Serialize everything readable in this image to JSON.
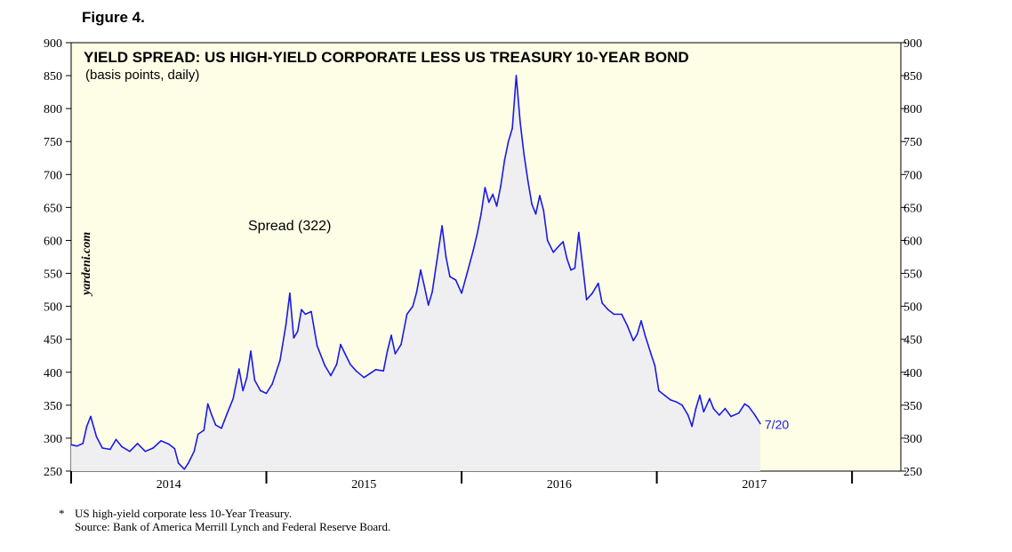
{
  "figure_label": "Figure 4.",
  "footnote": {
    "marker": "*",
    "line1": "US high-yield corporate less 10-Year Treasury.",
    "line2": "Source: Bank of America Merrill Lynch and Federal Reserve Board."
  },
  "colors": {
    "plot_bg": "#fefde6",
    "line": "#1a1ae6",
    "fill": "#efeff1",
    "axis": "#000000"
  },
  "chart_data": {
    "type": "area",
    "title": "YIELD SPREAD: US HIGH-YIELD CORPORATE LESS US TREASURY 10-YEAR BOND",
    "subtitle": "(basis points, daily)",
    "watermark": "yardeni.com",
    "series_label": "Spread (322)",
    "end_label": "7/20",
    "ylim": [
      250,
      900
    ],
    "yticks": [
      250,
      300,
      350,
      400,
      450,
      500,
      550,
      600,
      650,
      700,
      750,
      800,
      850,
      900
    ],
    "xlim": [
      2013.5,
      2017.75
    ],
    "xticks_major": [
      2013.5,
      2014.5,
      2015.5,
      2016.5,
      2017.5
    ],
    "xtick_labels": [
      {
        "label": "2014",
        "x": 2014.0
      },
      {
        "label": "2015",
        "x": 2015.0
      },
      {
        "label": "2016",
        "x": 2016.0
      },
      {
        "label": "2017",
        "x": 2017.0
      }
    ],
    "series": [
      {
        "name": "Spread",
        "points": [
          [
            2013.5,
            290
          ],
          [
            2013.53,
            288
          ],
          [
            2013.56,
            292
          ],
          [
            2013.58,
            318
          ],
          [
            2013.6,
            333
          ],
          [
            2013.63,
            302
          ],
          [
            2013.66,
            285
          ],
          [
            2013.7,
            283
          ],
          [
            2013.73,
            298
          ],
          [
            2013.76,
            287
          ],
          [
            2013.8,
            280
          ],
          [
            2013.84,
            292
          ],
          [
            2013.88,
            280
          ],
          [
            2013.92,
            285
          ],
          [
            2013.96,
            296
          ],
          [
            2014.0,
            291
          ],
          [
            2014.03,
            284
          ],
          [
            2014.05,
            262
          ],
          [
            2014.08,
            253
          ],
          [
            2014.1,
            262
          ],
          [
            2014.13,
            280
          ],
          [
            2014.15,
            306
          ],
          [
            2014.18,
            312
          ],
          [
            2014.2,
            352
          ],
          [
            2014.22,
            335
          ],
          [
            2014.24,
            320
          ],
          [
            2014.27,
            315
          ],
          [
            2014.3,
            338
          ],
          [
            2014.33,
            360
          ],
          [
            2014.36,
            405
          ],
          [
            2014.38,
            372
          ],
          [
            2014.4,
            392
          ],
          [
            2014.42,
            432
          ],
          [
            2014.44,
            388
          ],
          [
            2014.47,
            372
          ],
          [
            2014.5,
            368
          ],
          [
            2014.53,
            382
          ],
          [
            2014.57,
            418
          ],
          [
            2014.6,
            472
          ],
          [
            2014.62,
            520
          ],
          [
            2014.64,
            452
          ],
          [
            2014.66,
            462
          ],
          [
            2014.68,
            495
          ],
          [
            2014.7,
            488
          ],
          [
            2014.73,
            492
          ],
          [
            2014.76,
            440
          ],
          [
            2014.8,
            410
          ],
          [
            2014.83,
            395
          ],
          [
            2014.86,
            412
          ],
          [
            2014.88,
            442
          ],
          [
            2014.9,
            430
          ],
          [
            2014.93,
            412
          ],
          [
            2014.96,
            402
          ],
          [
            2015.0,
            392
          ],
          [
            2015.03,
            398
          ],
          [
            2015.06,
            404
          ],
          [
            2015.1,
            402
          ],
          [
            2015.12,
            432
          ],
          [
            2015.14,
            456
          ],
          [
            2015.16,
            428
          ],
          [
            2015.19,
            442
          ],
          [
            2015.22,
            488
          ],
          [
            2015.25,
            500
          ],
          [
            2015.27,
            522
          ],
          [
            2015.29,
            555
          ],
          [
            2015.31,
            530
          ],
          [
            2015.33,
            502
          ],
          [
            2015.35,
            522
          ],
          [
            2015.38,
            582
          ],
          [
            2015.4,
            622
          ],
          [
            2015.42,
            575
          ],
          [
            2015.44,
            545
          ],
          [
            2015.47,
            540
          ],
          [
            2015.5,
            520
          ],
          [
            2015.53,
            552
          ],
          [
            2015.56,
            585
          ],
          [
            2015.58,
            610
          ],
          [
            2015.6,
            640
          ],
          [
            2015.62,
            680
          ],
          [
            2015.64,
            658
          ],
          [
            2015.66,
            670
          ],
          [
            2015.68,
            652
          ],
          [
            2015.7,
            682
          ],
          [
            2015.72,
            722
          ],
          [
            2015.74,
            750
          ],
          [
            2015.76,
            770
          ],
          [
            2015.78,
            850
          ],
          [
            2015.8,
            780
          ],
          [
            2015.82,
            730
          ],
          [
            2015.84,
            690
          ],
          [
            2015.86,
            655
          ],
          [
            2015.88,
            640
          ],
          [
            2015.9,
            668
          ],
          [
            2015.92,
            645
          ],
          [
            2015.94,
            600
          ],
          [
            2015.97,
            582
          ],
          [
            2016.0,
            592
          ],
          [
            2016.02,
            598
          ],
          [
            2016.04,
            572
          ],
          [
            2016.06,
            555
          ],
          [
            2016.08,
            558
          ],
          [
            2016.1,
            612
          ],
          [
            2016.12,
            562
          ],
          [
            2016.14,
            510
          ],
          [
            2016.17,
            520
          ],
          [
            2016.2,
            535
          ],
          [
            2016.22,
            505
          ],
          [
            2016.25,
            495
          ],
          [
            2016.28,
            488
          ],
          [
            2016.32,
            488
          ],
          [
            2016.35,
            470
          ],
          [
            2016.38,
            448
          ],
          [
            2016.4,
            458
          ],
          [
            2016.42,
            478
          ],
          [
            2016.44,
            456
          ],
          [
            2016.47,
            428
          ],
          [
            2016.49,
            410
          ],
          [
            2016.51,
            372
          ],
          [
            2016.54,
            365
          ],
          [
            2016.57,
            358
          ],
          [
            2016.6,
            355
          ],
          [
            2016.63,
            350
          ],
          [
            2016.66,
            335
          ],
          [
            2016.68,
            318
          ],
          [
            2016.7,
            345
          ],
          [
            2016.72,
            365
          ],
          [
            2016.74,
            340
          ],
          [
            2016.77,
            360
          ],
          [
            2016.79,
            345
          ],
          [
            2016.82,
            335
          ],
          [
            2016.85,
            345
          ],
          [
            2016.88,
            333
          ],
          [
            2016.92,
            338
          ],
          [
            2016.95,
            352
          ],
          [
            2016.97,
            348
          ],
          [
            2017.0,
            336
          ],
          [
            2017.03,
            322
          ]
        ]
      }
    ]
  }
}
